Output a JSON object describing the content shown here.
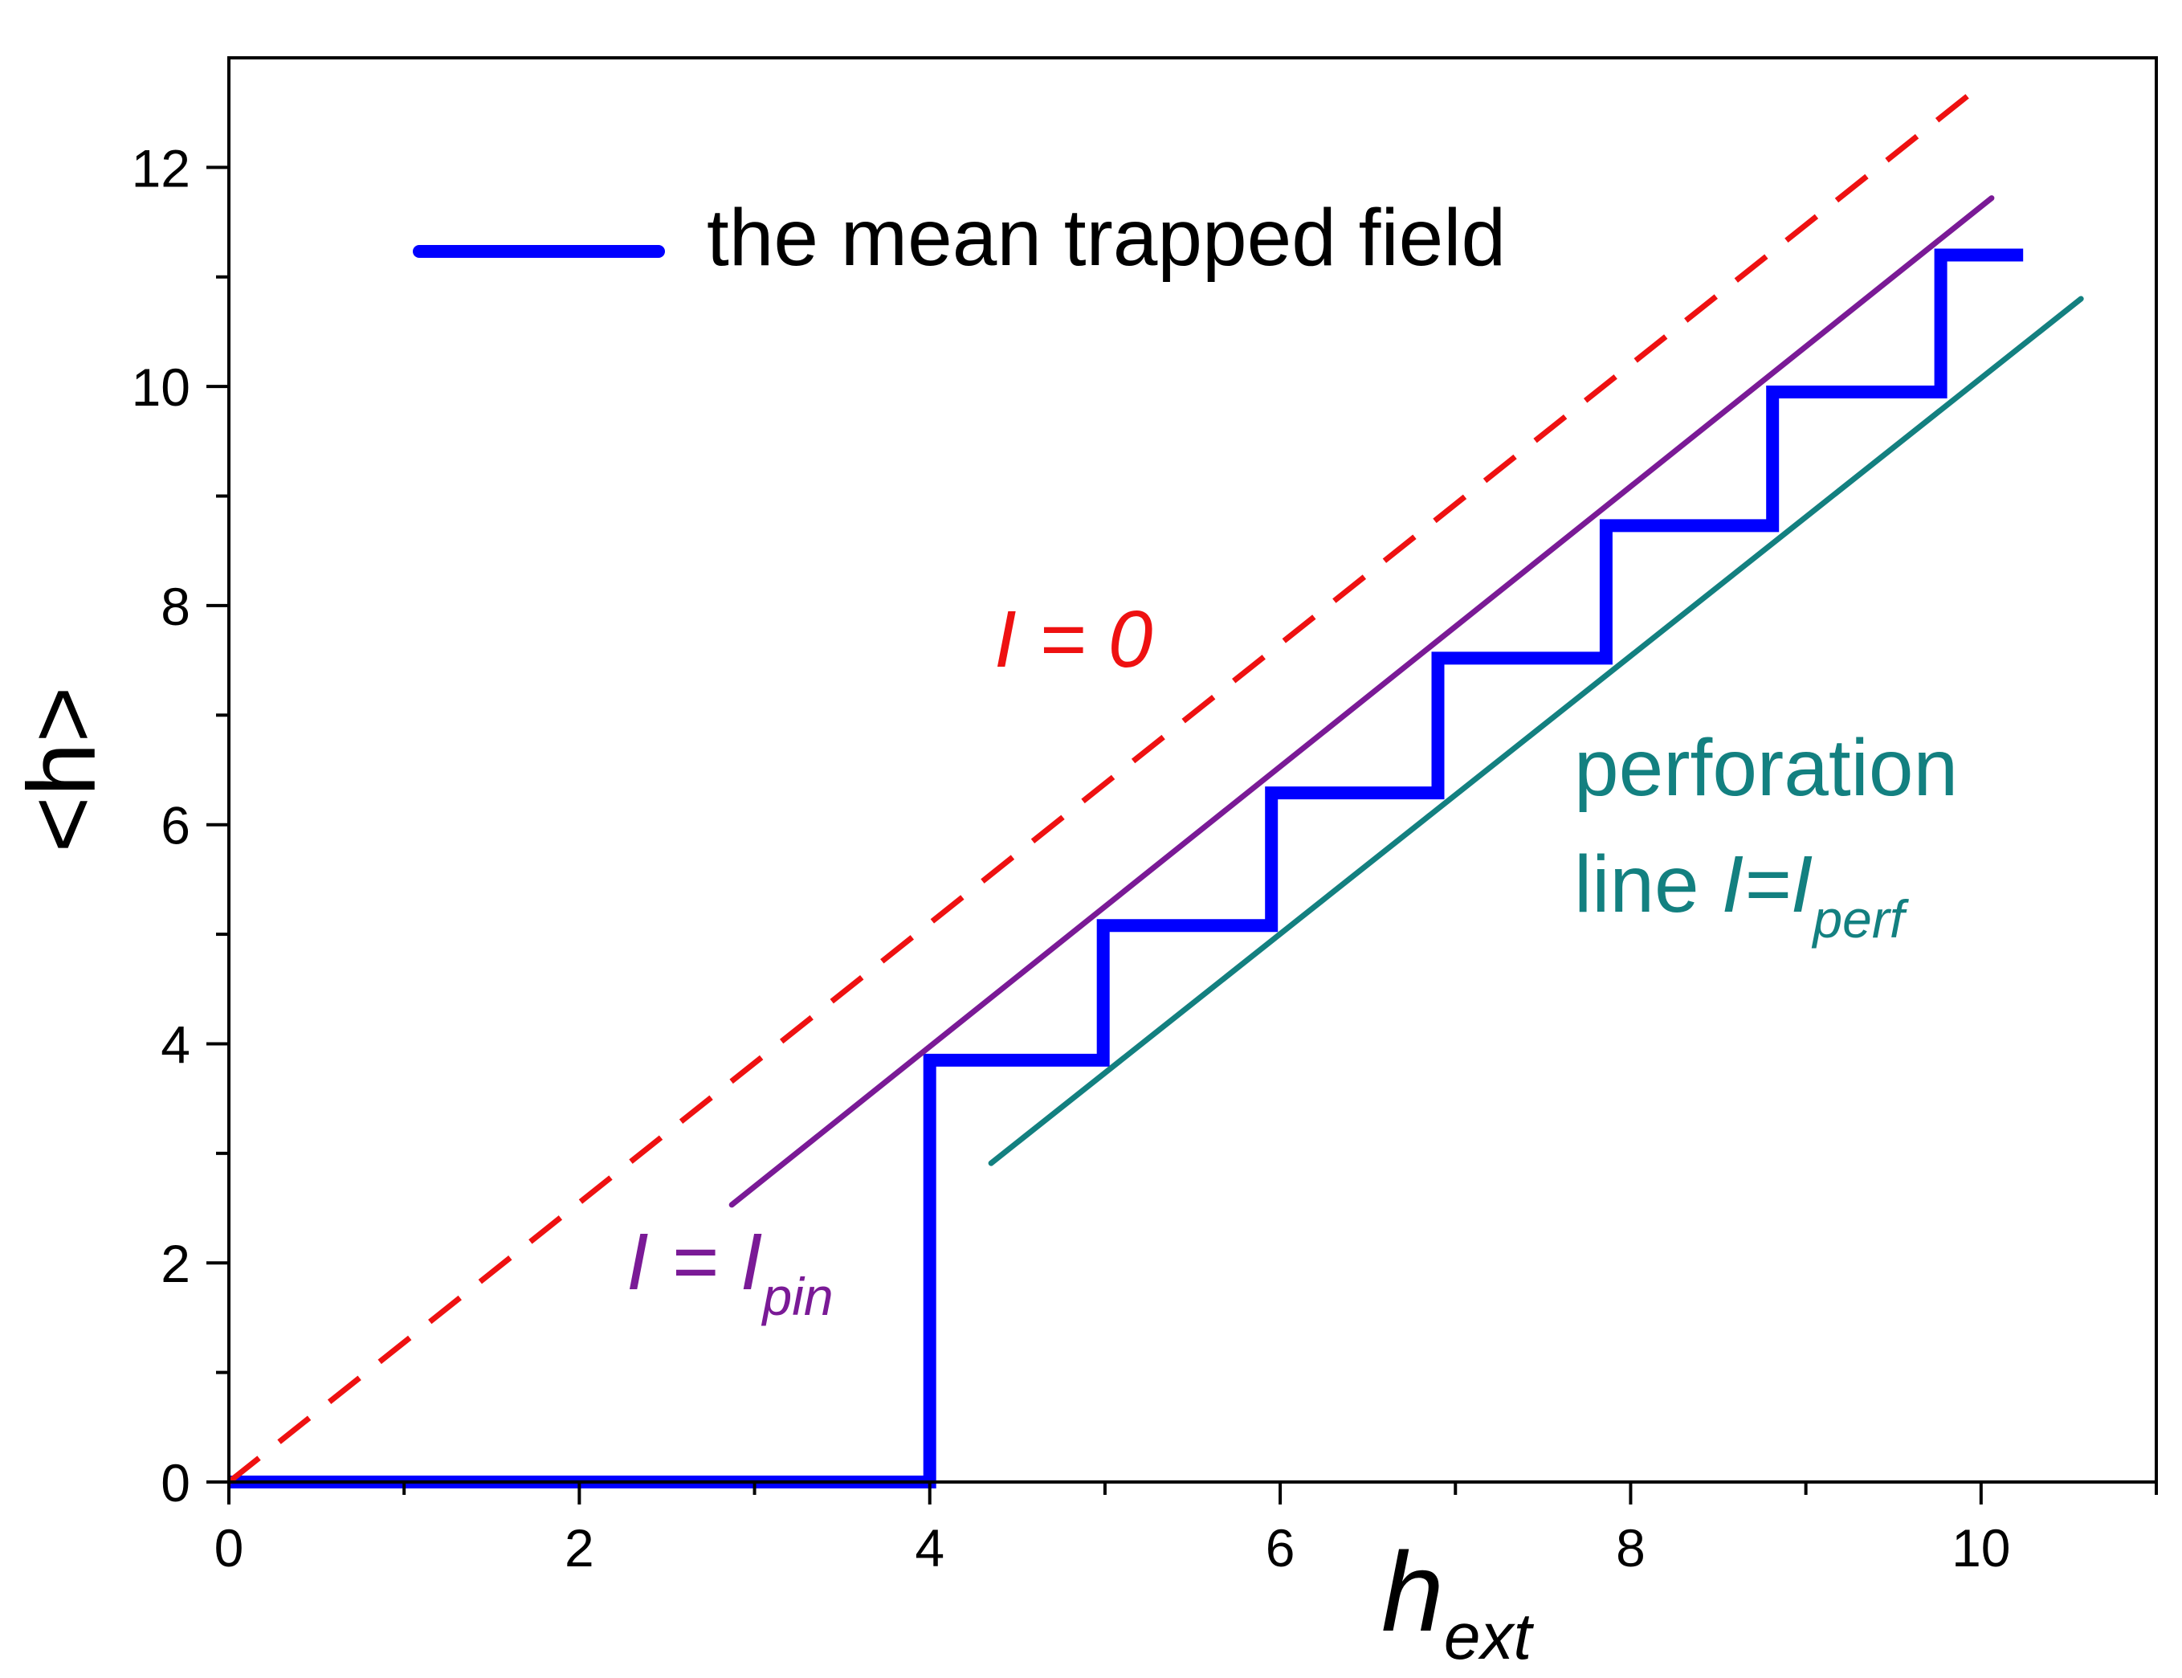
{
  "chart_data": {
    "type": "line",
    "title": "",
    "xlabel": {
      "base": "h",
      "sub": "ext"
    },
    "ylabel": "<h>",
    "xlim": [
      0,
      11
    ],
    "ylim": [
      0,
      13
    ],
    "x_ticks": [
      0,
      2,
      4,
      6,
      8,
      10
    ],
    "y_ticks": [
      0,
      2,
      4,
      6,
      8,
      10,
      12
    ],
    "x_minor_ticks": [
      1,
      3,
      5,
      7,
      9,
      11
    ],
    "y_minor_ticks": [
      1,
      3,
      5,
      7,
      9,
      11
    ],
    "grid": false,
    "legend": {
      "position": "top-left",
      "entries": [
        {
          "label": "the mean trapped field",
          "color": "#0000ff"
        }
      ]
    },
    "series": [
      {
        "name": "the mean trapped field",
        "style": "solid-thick",
        "color": "#0000ff",
        "x": [
          0,
          4.0,
          4.0,
          4.99,
          4.99,
          5.95,
          5.95,
          6.9,
          6.9,
          7.86,
          7.86,
          8.81,
          8.81,
          9.77,
          9.77,
          10.24
        ],
        "y": [
          0,
          0,
          3.85,
          3.85,
          5.08,
          5.08,
          6.29,
          6.29,
          7.52,
          7.52,
          8.73,
          8.73,
          9.95,
          9.95,
          11.2,
          11.2
        ]
      },
      {
        "name": "I = 0",
        "style": "dashed",
        "color": "#ee1111",
        "x": [
          0,
          10.0
        ],
        "y": [
          0,
          12.75
        ]
      },
      {
        "name": "I = I_pin",
        "style": "solid",
        "color": "#7a1a96",
        "x": [
          2.87,
          10.06
        ],
        "y": [
          2.53,
          11.72
        ]
      },
      {
        "name": "perforation line I=I_perf",
        "style": "solid",
        "color": "#138080",
        "x": [
          4.35,
          10.57
        ],
        "y": [
          2.91,
          10.8
        ]
      }
    ],
    "annotations": {
      "i_zero": {
        "main": "I = 0",
        "color": "#ee1111"
      },
      "i_pin": {
        "main": "I = I",
        "sub": "pin",
        "color": "#7a1a96"
      },
      "perf_line1": {
        "text": "perforation",
        "color": "#138080"
      },
      "perf_line2": {
        "prefix": "line ",
        "main": "I=I",
        "sub": "perf",
        "color": "#138080"
      }
    }
  }
}
